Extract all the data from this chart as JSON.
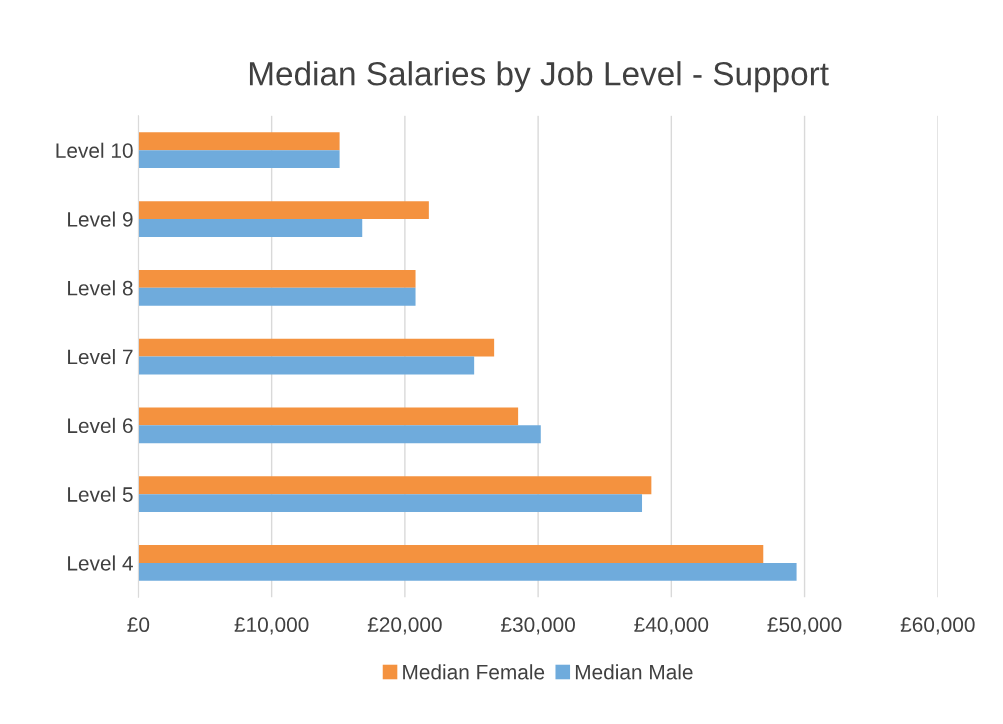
{
  "chart_data": {
    "type": "bar",
    "orientation": "horizontal",
    "title": "Median Salaries by Job Level - Support",
    "categories": [
      "Level 10",
      "Level 9",
      "Level 8",
      "Level 7",
      "Level 6",
      "Level 5",
      "Level 4"
    ],
    "series": [
      {
        "name": "Median Female",
        "color": "#f4923f",
        "values": [
          15100,
          21800,
          20800,
          26700,
          28500,
          38500,
          46900
        ]
      },
      {
        "name": "Median Male",
        "color": "#6fabdc",
        "values": [
          15100,
          16800,
          20800,
          25200,
          30200,
          37800,
          49400
        ]
      }
    ],
    "xlim": [
      0,
      60000
    ],
    "xticks": [
      {
        "value": 0,
        "label": "£0"
      },
      {
        "value": 10000,
        "label": "£10,000"
      },
      {
        "value": 20000,
        "label": "£20,000"
      },
      {
        "value": 30000,
        "label": "£30,000"
      },
      {
        "value": 40000,
        "label": "£40,000"
      },
      {
        "value": 50000,
        "label": "£50,000"
      },
      {
        "value": 60000,
        "label": "£60,000"
      }
    ],
    "grid": "x",
    "legend": "bottom"
  }
}
